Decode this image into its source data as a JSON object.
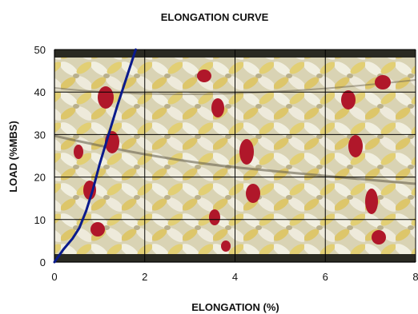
{
  "chart_data": {
    "type": "line",
    "title": "ELONGATION CURVE",
    "xlabel": "ELONGATION (%)",
    "ylabel": "LOAD (%MBS)",
    "xlim": [
      0,
      8
    ],
    "ylim": [
      0,
      50
    ],
    "xticks": [
      "0",
      "2",
      "4",
      "6",
      "8"
    ],
    "yticks": [
      "0",
      "10",
      "20",
      "30",
      "40",
      "50"
    ],
    "grid": true,
    "legend": "none",
    "background": "braided-rope-photo",
    "series": [
      {
        "color": "#0a1a8c",
        "x": [
          0,
          0.2,
          0.4,
          0.55,
          0.7,
          0.85,
          1.0,
          1.2,
          1.4,
          1.6,
          1.8
        ],
        "y": [
          0,
          3,
          5.5,
          8,
          12,
          17,
          23,
          30,
          37,
          43.5,
          50
        ]
      }
    ]
  }
}
